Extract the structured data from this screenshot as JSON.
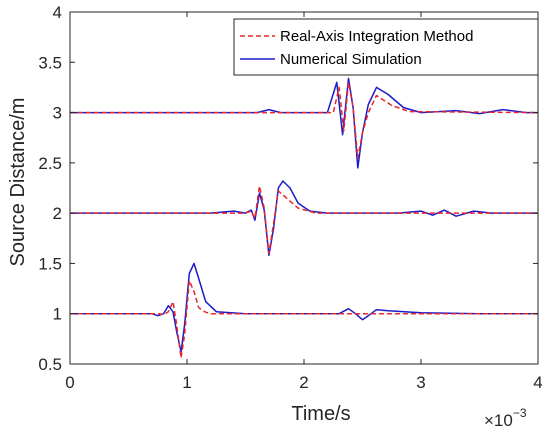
{
  "chart_data": {
    "type": "line",
    "xlabel": "Time/s",
    "ylabel": "Source Distance/m",
    "x_multiplier_label": {
      "base": "×10",
      "exponent": "−3"
    },
    "xlim": [
      0,
      4
    ],
    "ylim": [
      0.5,
      4
    ],
    "x_ticks": [
      "0",
      "1",
      "2",
      "3",
      "4"
    ],
    "y_ticks": [
      "0.5",
      "1",
      "1.5",
      "2",
      "2.5",
      "3",
      "3.5",
      "4"
    ],
    "x_tick_values": [
      0,
      1,
      2,
      3,
      4
    ],
    "y_tick_values": [
      0.5,
      1,
      1.5,
      2,
      2.5,
      3,
      3.5,
      4
    ],
    "grid": false,
    "legend_position": "top-right",
    "colors": {
      "real_axis": "#e8262b",
      "numerical": "#1c1ccc",
      "axis": "#262626"
    },
    "series": [
      {
        "name": "Real-Axis Integration Method",
        "style": "dashed",
        "traces": [
          {
            "baseline": 1,
            "points": [
              [
                0,
                1.0
              ],
              [
                0.76,
                1.0
              ],
              [
                0.8,
                0.99
              ],
              [
                0.84,
                1.02
              ],
              [
                0.88,
                1.12
              ],
              [
                0.91,
                0.9
              ],
              [
                0.95,
                0.56
              ],
              [
                0.98,
                0.8
              ],
              [
                1.02,
                1.33
              ],
              [
                1.06,
                1.22
              ],
              [
                1.1,
                1.06
              ],
              [
                1.15,
                1.02
              ],
              [
                1.2,
                1.0
              ],
              [
                4,
                1.0
              ]
            ]
          },
          {
            "baseline": 2,
            "points": [
              [
                0,
                2.0
              ],
              [
                1.5,
                2.0
              ],
              [
                1.55,
                2.02
              ],
              [
                1.58,
                1.95
              ],
              [
                1.62,
                2.27
              ],
              [
                1.66,
                2.05
              ],
              [
                1.7,
                1.6
              ],
              [
                1.74,
                1.9
              ],
              [
                1.78,
                2.22
              ],
              [
                1.85,
                2.15
              ],
              [
                1.95,
                2.05
              ],
              [
                2.1,
                2.0
              ],
              [
                4,
                2.0
              ]
            ]
          },
          {
            "baseline": 3,
            "points": [
              [
                0,
                3.0
              ],
              [
                2.25,
                3.0
              ],
              [
                2.3,
                3.25
              ],
              [
                2.34,
                2.82
              ],
              [
                2.38,
                3.3
              ],
              [
                2.42,
                3.05
              ],
              [
                2.46,
                2.55
              ],
              [
                2.5,
                2.8
              ],
              [
                2.55,
                3.0
              ],
              [
                2.62,
                3.17
              ],
              [
                2.75,
                3.07
              ],
              [
                2.9,
                3.01
              ],
              [
                4,
                3.0
              ]
            ]
          }
        ]
      },
      {
        "name": "Numerical Simulation",
        "style": "solid",
        "traces": [
          {
            "baseline": 1,
            "points": [
              [
                0,
                1.0
              ],
              [
                0.7,
                1.0
              ],
              [
                0.75,
                0.98
              ],
              [
                0.8,
                1.0
              ],
              [
                0.84,
                1.08
              ],
              [
                0.88,
                1.02
              ],
              [
                0.91,
                0.83
              ],
              [
                0.95,
                0.62
              ],
              [
                0.98,
                0.9
              ],
              [
                1.02,
                1.4
              ],
              [
                1.06,
                1.5
              ],
              [
                1.1,
                1.35
              ],
              [
                1.16,
                1.12
              ],
              [
                1.25,
                1.02
              ],
              [
                1.5,
                1.0
              ],
              [
                2.3,
                1.0
              ],
              [
                2.38,
                1.05
              ],
              [
                2.44,
                1.0
              ],
              [
                2.5,
                0.94
              ],
              [
                2.55,
                0.98
              ],
              [
                2.62,
                1.04
              ],
              [
                2.72,
                1.03
              ],
              [
                3.0,
                1.01
              ],
              [
                3.5,
                1.0
              ],
              [
                4,
                1.0
              ]
            ]
          },
          {
            "baseline": 2,
            "points": [
              [
                0,
                2.0
              ],
              [
                1.2,
                2.0
              ],
              [
                1.4,
                2.02
              ],
              [
                1.5,
                2.0
              ],
              [
                1.55,
                2.03
              ],
              [
                1.58,
                1.93
              ],
              [
                1.62,
                2.2
              ],
              [
                1.66,
                2.03
              ],
              [
                1.7,
                1.58
              ],
              [
                1.74,
                1.85
              ],
              [
                1.78,
                2.25
              ],
              [
                1.82,
                2.32
              ],
              [
                1.88,
                2.25
              ],
              [
                1.95,
                2.1
              ],
              [
                2.05,
                2.02
              ],
              [
                2.2,
                2.0
              ],
              [
                2.8,
                2.0
              ],
              [
                3.0,
                2.02
              ],
              [
                3.1,
                1.98
              ],
              [
                3.2,
                2.03
              ],
              [
                3.3,
                1.97
              ],
              [
                3.45,
                2.02
              ],
              [
                3.6,
                2.0
              ],
              [
                4,
                2.0
              ]
            ]
          },
          {
            "baseline": 3,
            "points": [
              [
                0,
                3.0
              ],
              [
                1.6,
                3.0
              ],
              [
                1.7,
                3.03
              ],
              [
                1.8,
                3.0
              ],
              [
                2.2,
                3.0
              ],
              [
                2.28,
                3.3
              ],
              [
                2.33,
                2.78
              ],
              [
                2.38,
                3.34
              ],
              [
                2.42,
                3.05
              ],
              [
                2.46,
                2.45
              ],
              [
                2.5,
                2.8
              ],
              [
                2.55,
                3.08
              ],
              [
                2.62,
                3.25
              ],
              [
                2.72,
                3.18
              ],
              [
                2.85,
                3.05
              ],
              [
                3.0,
                3.0
              ],
              [
                3.3,
                3.02
              ],
              [
                3.5,
                2.99
              ],
              [
                3.7,
                3.03
              ],
              [
                3.9,
                3.0
              ],
              [
                4,
                3.0
              ]
            ]
          }
        ]
      }
    ]
  }
}
